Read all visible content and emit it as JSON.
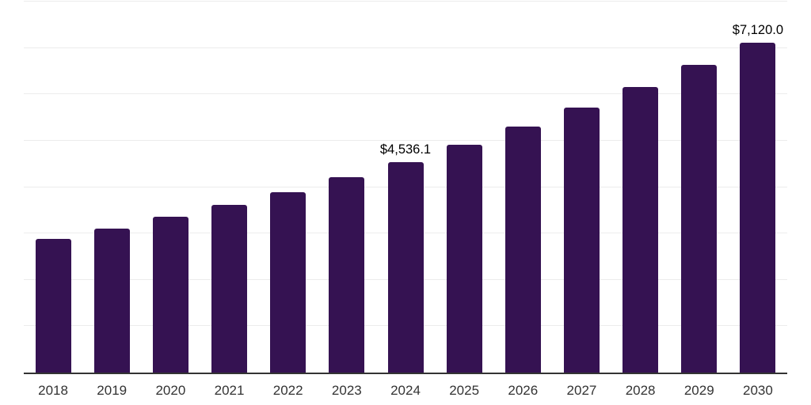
{
  "chart_data": {
    "type": "bar",
    "title": "",
    "xlabel": "",
    "ylabel": "",
    "categories": [
      "2018",
      "2019",
      "2020",
      "2021",
      "2022",
      "2023",
      "2024",
      "2025",
      "2026",
      "2027",
      "2028",
      "2029",
      "2030"
    ],
    "values": [
      2880,
      3110,
      3360,
      3610,
      3890,
      4210,
      4536.1,
      4920,
      5300,
      5710,
      6150,
      6640,
      7120
    ],
    "value_labels": [
      null,
      null,
      null,
      null,
      null,
      null,
      "$4,536.1",
      null,
      null,
      null,
      null,
      null,
      "$7,120.0"
    ],
    "ylim": [
      0,
      8000
    ],
    "gridline_step": 1000,
    "grid": "on",
    "legend": "none",
    "y_axis_tick_labels": "none",
    "colors": {
      "bar": "#351252",
      "gridline": "#ececec",
      "axis_line": "#333333",
      "x_tick_label": "#333333",
      "value_label": "#000000",
      "background": "#ffffff"
    }
  }
}
